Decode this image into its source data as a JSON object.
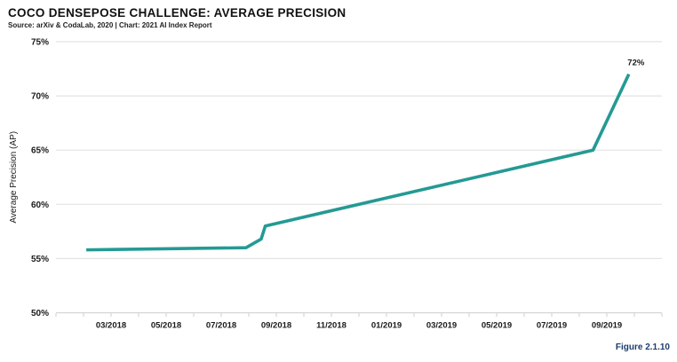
{
  "header": {
    "title": "COCO DENSEPOSE CHALLENGE: AVERAGE PRECISION",
    "source": "Source: arXiv & CodaLab, 2020 | Chart: 2021 AI Index Report"
  },
  "footer": {
    "figure_label": "Figure 2.1.10"
  },
  "colors": {
    "line": "#249a94",
    "gridline": "#e3e3e3",
    "bottom_axis": "#d4d4d4",
    "minor_tick": "#cfcfcf",
    "text": "#1a1a1a",
    "figure_label": "#1c3c6e"
  },
  "chart_data": {
    "type": "line",
    "title": "COCO DENSEPOSE CHALLENGE: AVERAGE PRECISION",
    "xlabel": "",
    "ylabel": "Average Precision (AP)",
    "ylim": [
      50,
      75
    ],
    "y_ticks": [
      75,
      70,
      65,
      60,
      55,
      50
    ],
    "y_tick_labels": [
      "75%",
      "70%",
      "65%",
      "60%",
      "55%",
      "50%"
    ],
    "x_axis": {
      "start_month": "01/2018",
      "end_month": "11/2019",
      "total_month_intervals": 22,
      "minor_tick_every_months": 1,
      "label_every_months": 2
    },
    "x_tick_labels": [
      "03/2018",
      "05/2018",
      "07/2018",
      "09/2018",
      "11/2018",
      "01/2019",
      "03/2019",
      "05/2019",
      "07/2019",
      "09/2019"
    ],
    "x_tick_label_month_indices": [
      2,
      4,
      6,
      8,
      10,
      12,
      14,
      16,
      18,
      20
    ],
    "grid": "horizontal",
    "legend": "none",
    "end_point_label": "72%",
    "series": [
      {
        "name": "Average Precision (AP)",
        "points": [
          {
            "date": "02/2018",
            "ap": 55.8,
            "x_month_index": 1.1
          },
          {
            "date": "07/2018",
            "ap": 56.0,
            "x_month_index": 6.9
          },
          {
            "date": "08/2018",
            "ap": 56.8,
            "x_month_index": 7.45
          },
          {
            "date": "08/2018",
            "ap": 58.0,
            "x_month_index": 7.6
          },
          {
            "date": "08/2019",
            "ap": 65.0,
            "x_month_index": 19.5
          },
          {
            "date": "09/2019",
            "ap": 72.0,
            "x_month_index": 20.8
          }
        ]
      }
    ]
  }
}
